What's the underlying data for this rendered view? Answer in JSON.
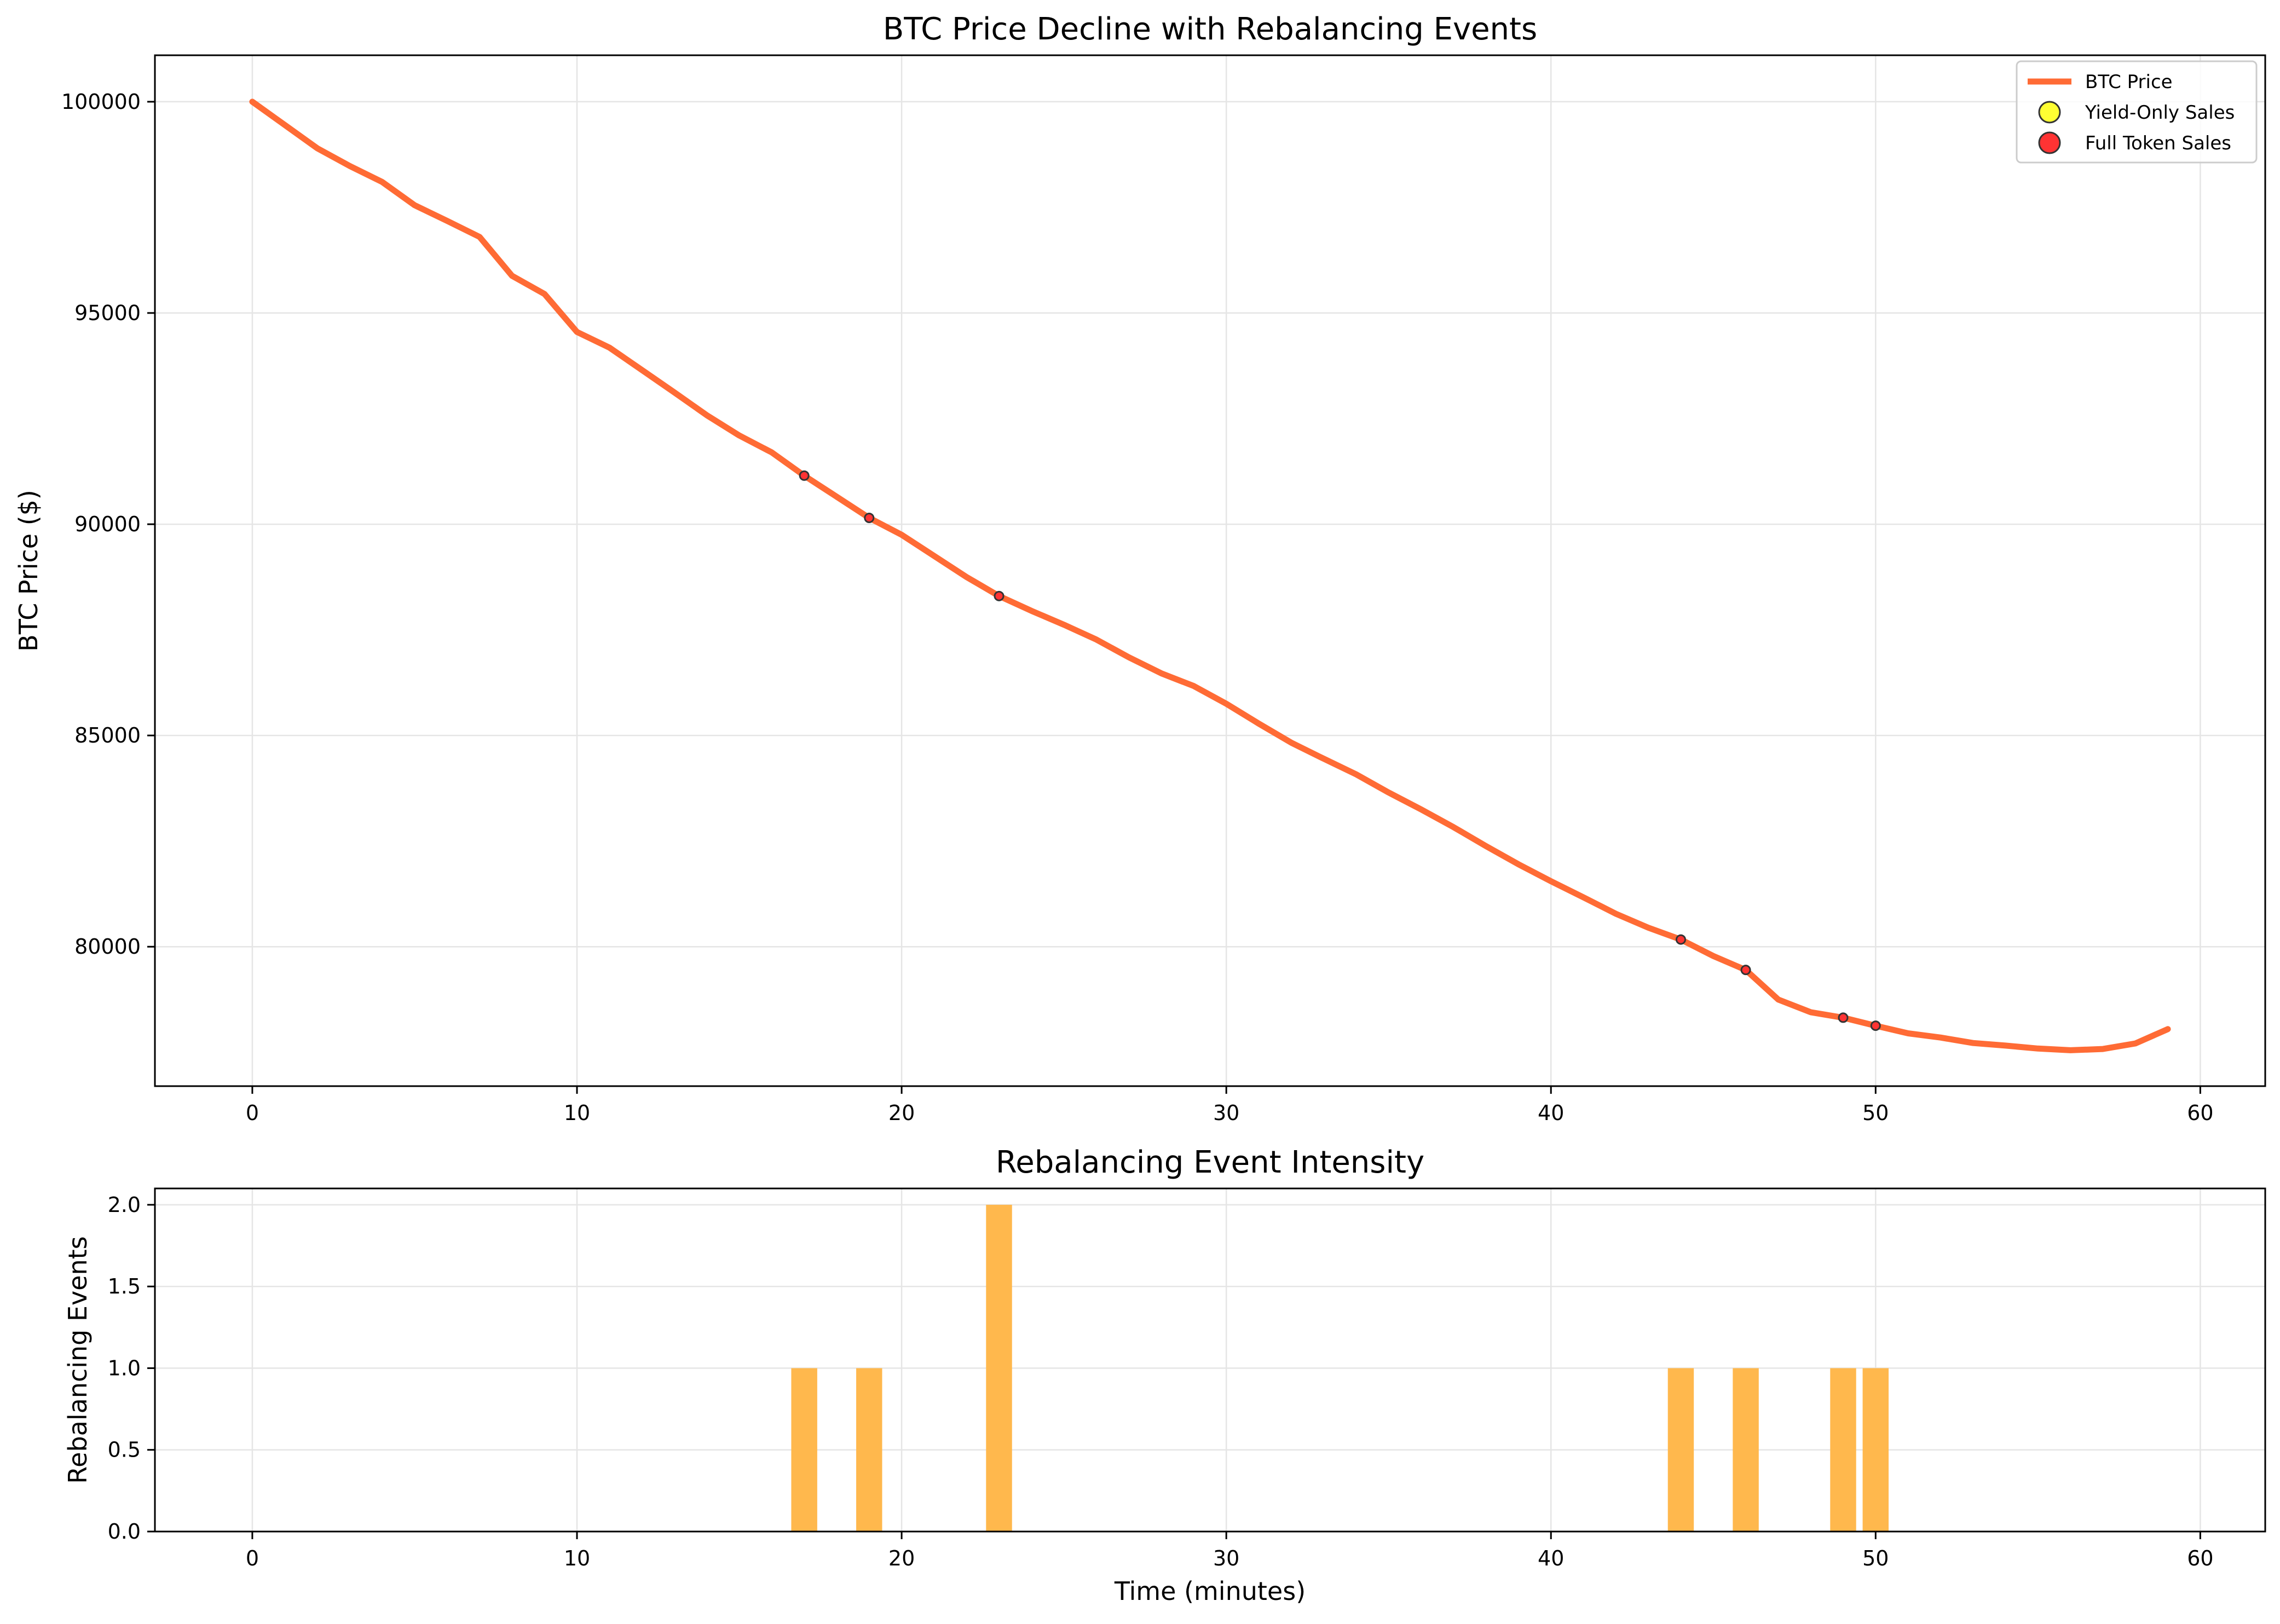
{
  "colors": {
    "price_line": "#FF6B35",
    "bar_fill": "#FFB84D",
    "yield_only_marker": "#FFFF33",
    "full_token_marker": "#FF3333",
    "grid": "#e5e5e5",
    "axis": "#000000"
  },
  "chart_data": [
    {
      "type": "line",
      "title": "BTC Price Decline with Rebalancing Events",
      "xlabel": "",
      "ylabel": "BTC Price ($)",
      "xlim": [
        -3,
        62
      ],
      "ylim": [
        76700,
        101100
      ],
      "xticks": [
        0,
        10,
        20,
        30,
        40,
        50,
        60
      ],
      "yticks": [
        80000,
        85000,
        90000,
        95000,
        100000
      ],
      "grid": true,
      "legend_position": "top-right",
      "series": [
        {
          "name": "BTC Price",
          "x": [
            0,
            1,
            2,
            3,
            4,
            5,
            6,
            7,
            8,
            9,
            10,
            11,
            12,
            13,
            14,
            15,
            16,
            17,
            18,
            19,
            20,
            21,
            22,
            23,
            24,
            25,
            26,
            27,
            28,
            29,
            30,
            31,
            32,
            33,
            34,
            35,
            36,
            37,
            38,
            39,
            40,
            41,
            42,
            43,
            44,
            45,
            46,
            47,
            48,
            49,
            50,
            51,
            52,
            53,
            54,
            55,
            56,
            57,
            58,
            59
          ],
          "y": [
            100000,
            99450,
            98900,
            98480,
            98100,
            97550,
            97180,
            96800,
            95880,
            95450,
            94550,
            94180,
            93650,
            93120,
            92580,
            92100,
            91700,
            91150,
            90650,
            90150,
            89750,
            89250,
            88750,
            88300,
            87950,
            87620,
            87270,
            86850,
            86470,
            86170,
            85750,
            85280,
            84830,
            84450,
            84080,
            83650,
            83250,
            82830,
            82380,
            81950,
            81550,
            81170,
            80780,
            80450,
            80170,
            79780,
            79450,
            78750,
            78450,
            78320,
            78130,
            77950,
            77850,
            77720,
            77660,
            77590,
            77550,
            77580,
            77710,
            78050
          ]
        },
        {
          "name": "Yield-Only Sales",
          "x": [],
          "y": []
        },
        {
          "name": "Full Token Sales",
          "x": [
            17,
            19,
            23,
            44,
            46,
            49,
            50
          ],
          "y": [
            91150,
            90150,
            88300,
            80170,
            79450,
            78320,
            78130
          ]
        }
      ]
    },
    {
      "type": "bar",
      "title": "Rebalancing Event Intensity",
      "xlabel": "Time (minutes)",
      "ylabel": "Rebalancing Events",
      "xlim": [
        -3,
        62
      ],
      "ylim": [
        0,
        2.1
      ],
      "xticks": [
        0,
        10,
        20,
        30,
        40,
        50,
        60
      ],
      "yticks": [
        0.0,
        0.5,
        1.0,
        1.5,
        2.0
      ],
      "grid": true,
      "bar_width": 0.8,
      "x": [
        17,
        19,
        23,
        44,
        46,
        49,
        50
      ],
      "values": [
        1,
        1,
        2,
        1,
        1,
        1,
        1
      ]
    }
  ]
}
